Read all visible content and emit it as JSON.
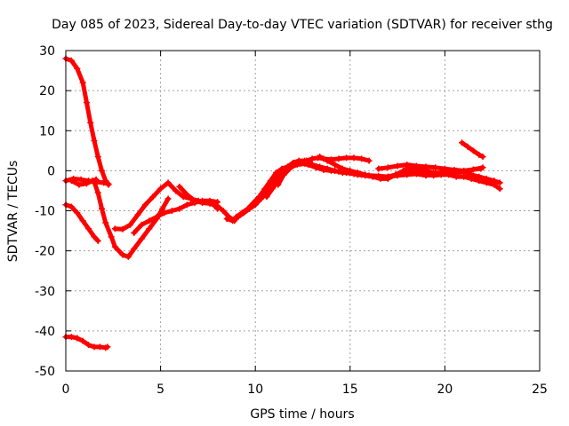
{
  "chart_data": {
    "type": "scatter",
    "title": "Day 085 of 2023, Sidereal Day-to-day VTEC variation (SDTVAR) for receiver sthg",
    "xlabel": "GPS time / hours",
    "ylabel": "SDTVAR / TECUs",
    "xlim": [
      0,
      25
    ],
    "ylim": [
      -50,
      30
    ],
    "xticks": [
      0,
      5,
      10,
      15,
      20,
      25
    ],
    "yticks": [
      -50,
      -40,
      -30,
      -20,
      -10,
      0,
      10,
      20,
      30
    ],
    "grid": true,
    "legend": "none",
    "color": "#ff0000",
    "series": [
      {
        "name": "s1",
        "x": [
          0.0,
          0.3,
          0.6,
          0.9,
          1.1,
          1.3,
          1.5,
          1.7,
          1.9,
          2.1,
          2.25
        ],
        "y": [
          28,
          27.5,
          25.5,
          22,
          17,
          12,
          7.5,
          3.5,
          0,
          -2.5,
          -3.5
        ]
      },
      {
        "name": "s2",
        "x": [
          0.0,
          0.4,
          0.8,
          1.2,
          1.6,
          2.0,
          2.25
        ],
        "y": [
          -2.5,
          -2,
          -2.2,
          -2.5,
          -2.8,
          -3.0,
          -3.3
        ]
      },
      {
        "name": "s3",
        "x": [
          0.3,
          0.7,
          1.1,
          1.4,
          1.6
        ],
        "y": [
          -2.5,
          -3.5,
          -3.2,
          -2.5,
          -2.2
        ]
      },
      {
        "name": "s4",
        "x": [
          0.0,
          0.3,
          0.6,
          0.9,
          1.2,
          1.5,
          1.7
        ],
        "y": [
          -8.5,
          -9,
          -10.5,
          -12.5,
          -14.5,
          -16.5,
          -17.5
        ]
      },
      {
        "name": "s5",
        "x": [
          1.5,
          1.7,
          1.9,
          2.1,
          2.4,
          2.6,
          3.0,
          3.3,
          3.6,
          4.0,
          4.4,
          4.8,
          5.1,
          5.4
        ],
        "y": [
          -2.8,
          -5.5,
          -9.5,
          -13,
          -16.5,
          -19,
          -21,
          -21.5,
          -19.5,
          -17,
          -14.5,
          -12,
          -9.5,
          -7
        ]
      },
      {
        "name": "s6",
        "x": [
          2.6,
          3.0,
          3.4,
          3.8,
          4.2,
          4.6,
          5.0,
          5.4,
          5.8,
          6.2,
          6.6,
          7.0,
          7.4,
          7.8,
          8.0
        ],
        "y": [
          -14.5,
          -14.6,
          -13.5,
          -11,
          -8.5,
          -6.5,
          -4.5,
          -3.0,
          -5.0,
          -6.5,
          -7.0,
          -7.5,
          -7.8,
          -8.5,
          -9.5
        ]
      },
      {
        "name": "s7",
        "x": [
          3.6,
          4.0,
          4.4,
          4.8,
          5.2,
          5.6,
          6.0,
          6.4,
          6.8,
          7.2,
          7.6,
          8.0
        ],
        "y": [
          -15.5,
          -13.5,
          -12.5,
          -11.5,
          -10.5,
          -10.0,
          -9.5,
          -8.5,
          -8.0,
          -7.5,
          -7.5,
          -7.8
        ]
      },
      {
        "name": "s8",
        "x": [
          6.0,
          6.4,
          6.8,
          7.2,
          7.6,
          8.0,
          8.3,
          8.6,
          8.9
        ],
        "y": [
          -4.0,
          -6.0,
          -7.5,
          -8.0,
          -8.2,
          -8.8,
          -10,
          -11.5,
          -12.5
        ]
      },
      {
        "name": "s9",
        "x": [
          8.5,
          8.8,
          9.1,
          9.4,
          9.7,
          10.0,
          10.3,
          10.6,
          10.9,
          11.2,
          11.5,
          11.8
        ],
        "y": [
          -12.0,
          -12.5,
          -11.5,
          -10.5,
          -9.5,
          -8.5,
          -7.0,
          -5.5,
          -3.5,
          -1.5,
          0.0,
          1.0
        ]
      },
      {
        "name": "s10",
        "x": [
          9.0,
          9.3,
          9.6,
          9.9,
          10.2,
          10.5,
          10.8,
          11.1,
          11.4,
          11.7,
          12.0,
          12.3,
          12.6,
          12.9
        ],
        "y": [
          -11.5,
          -10.5,
          -9.5,
          -8.0,
          -6.5,
          -4.5,
          -2.5,
          -0.5,
          0.5,
          1.0,
          2.0,
          2.5,
          2.5,
          2.0
        ]
      },
      {
        "name": "s11",
        "x": [
          10.6,
          10.9,
          11.2,
          11.5,
          11.8,
          12.1,
          12.4,
          12.7,
          13.0,
          13.3,
          13.6,
          14.0,
          14.4,
          14.8,
          15.2,
          15.6,
          16.0
        ],
        "y": [
          -6.5,
          -4.5,
          -2.5,
          -1.0,
          0.5,
          1.5,
          2.0,
          2.5,
          3.0,
          3.2,
          3.0,
          2.8,
          3.0,
          3.2,
          3.2,
          3.0,
          2.5
        ]
      },
      {
        "name": "s12",
        "x": [
          11.2,
          11.5,
          11.8,
          12.1,
          12.4,
          12.8,
          13.2,
          13.6,
          14.0,
          14.4,
          14.8,
          15.2,
          15.6,
          16.0,
          16.5,
          17.0,
          17.5,
          18.0,
          18.5,
          19.0,
          19.5,
          20.0,
          20.5,
          21.0,
          21.5,
          22.0
        ],
        "y": [
          -3.5,
          -1.0,
          0.5,
          1.5,
          1.8,
          1.5,
          0.8,
          0.2,
          0.0,
          -0.2,
          -0.5,
          -0.8,
          -1.0,
          -1.2,
          -1.3,
          -1.5,
          -1.2,
          -1.0,
          -0.8,
          -1.2,
          -0.8,
          -0.5,
          -0.5,
          -0.3,
          0.3,
          0.8
        ]
      },
      {
        "name": "s13",
        "x": [
          12.2,
          12.6,
          13.0,
          13.4,
          13.8,
          14.2,
          14.6,
          15.0,
          15.4,
          15.8,
          16.2,
          16.6,
          17.0,
          17.4,
          17.8,
          18.2,
          18.6,
          19.0,
          19.4,
          19.8,
          20.2,
          20.6,
          21.0,
          21.4,
          21.8,
          22.2,
          22.6,
          22.9
        ],
        "y": [
          1.5,
          1.8,
          1.5,
          1.0,
          0.5,
          0.0,
          -0.5,
          -0.5,
          -1.0,
          -1.2,
          -1.5,
          -1.8,
          -1.5,
          -1.0,
          -0.5,
          0.0,
          -0.5,
          -1.0,
          -1.2,
          -1.0,
          -1.0,
          -1.5,
          -1.5,
          -2.0,
          -2.5,
          -3.0,
          -3.5,
          -4.5
        ]
      },
      {
        "name": "s14",
        "x": [
          13.4,
          13.8,
          14.2,
          14.6,
          15.0,
          15.4,
          15.8,
          16.2,
          16.6,
          17.0,
          17.4,
          17.8,
          18.2,
          18.6,
          19.0,
          19.4,
          19.8,
          20.2,
          20.6,
          21.0,
          21.4,
          21.8,
          22.2,
          22.6,
          22.9
        ],
        "y": [
          3.5,
          2.5,
          1.5,
          0.5,
          0.0,
          -0.5,
          -1.0,
          -1.5,
          -2.0,
          -2.0,
          -1.0,
          0.0,
          1.0,
          0.5,
          0.0,
          -0.5,
          -0.5,
          -0.2,
          0.0,
          -0.3,
          -1.0,
          -1.5,
          -2.0,
          -2.5,
          -3.0
        ]
      },
      {
        "name": "s15",
        "x": [
          16.5,
          17.0,
          17.5,
          18.0,
          18.5,
          19.0,
          19.5,
          20.0,
          20.5,
          21.0,
          21.5,
          21.9
        ],
        "y": [
          0.5,
          0.8,
          1.2,
          1.5,
          1.2,
          1.0,
          0.8,
          0.5,
          0.2,
          0.0,
          0.3,
          0.5
        ]
      },
      {
        "name": "s16",
        "x": [
          20.9,
          21.2,
          21.5,
          21.8,
          22.0
        ],
        "y": [
          7.0,
          6.0,
          5.0,
          4.0,
          3.5
        ]
      },
      {
        "name": "s17",
        "x": [
          0.0,
          0.3,
          0.6,
          0.9,
          1.2,
          1.5,
          1.8,
          2.1,
          2.2
        ],
        "y": [
          -41.5,
          -41.5,
          -41.8,
          -42.5,
          -43.5,
          -44.0,
          -44.0,
          -44.2,
          -44.0
        ]
      }
    ]
  }
}
